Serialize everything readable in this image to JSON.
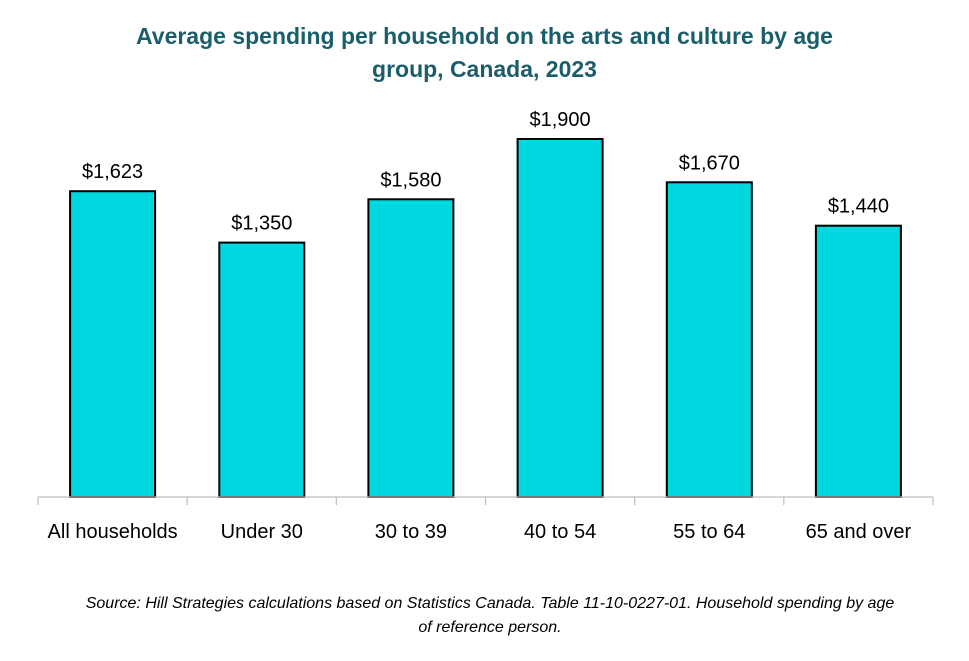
{
  "chart_data": {
    "type": "bar",
    "title_line1": "Average spending per household on the arts and culture by age",
    "title_line2": "group, Canada, 2023",
    "categories": [
      "All households",
      "Under 30",
      "30 to 39",
      "40 to 54",
      "55 to 64",
      "65 and over"
    ],
    "values": [
      1623,
      1350,
      1580,
      1900,
      1670,
      1440
    ],
    "value_labels": [
      "$1,623",
      "$1,350",
      "$1,580",
      "$1,900",
      "$1,670",
      "$1,440"
    ],
    "xlabel": "",
    "ylabel": "",
    "ylim": [
      0,
      2000
    ],
    "grid": false,
    "legend": "none",
    "bar_color": "#00d8e0",
    "source": "Source: Hill Strategies calculations based on Statistics Canada. Table 11-10-0227-01. Household spending by age of reference person."
  }
}
